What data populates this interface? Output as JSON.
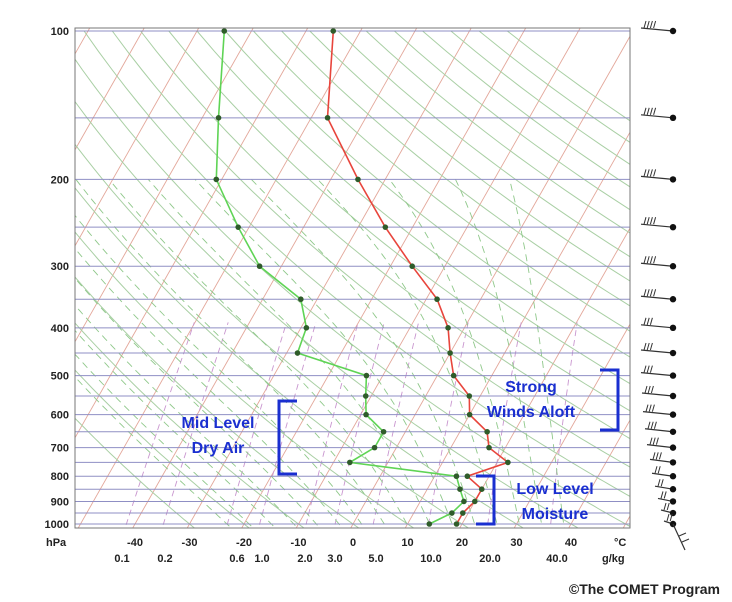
{
  "chart_data": {
    "type": "skew-t log-p diagram",
    "pressure_unit": "hPa",
    "temperature_unit": "°C",
    "mixing_ratio_unit": "g/kg",
    "pressure_levels": [
      100,
      200,
      300,
      400,
      500,
      600,
      700,
      800,
      900,
      1000
    ],
    "pressure_tick_labels": [
      "100",
      "200",
      "300",
      "400",
      "500",
      "600",
      "700",
      "800",
      "900",
      "1000"
    ],
    "temperature_ticks": [
      -40,
      -30,
      -20,
      -10,
      0,
      10,
      20,
      30,
      40
    ],
    "temperature_tick_labels": [
      "-40",
      "-30",
      "-20",
      "-10",
      "0",
      "10",
      "20",
      "30",
      "40"
    ],
    "mixing_ratio_ticks": [
      "0.1",
      "0.2",
      "0.6",
      "1.0",
      "2.0",
      "3.0",
      "5.0",
      "10.0",
      "20.0",
      "40.0"
    ],
    "series": [
      {
        "role": "temperature",
        "color": "#e8453c",
        "points": [
          [
            1000,
            19
          ],
          [
            950,
            19
          ],
          [
            900,
            20
          ],
          [
            850,
            20
          ],
          [
            800,
            16
          ],
          [
            750,
            22
          ],
          [
            700,
            17
          ],
          [
            650,
            15
          ],
          [
            600,
            10
          ],
          [
            550,
            8
          ],
          [
            500,
            3
          ],
          [
            450,
            0
          ],
          [
            400,
            -3
          ],
          [
            350,
            -8
          ],
          [
            300,
            -16
          ],
          [
            250,
            -25
          ],
          [
            200,
            -35
          ],
          [
            150,
            -47
          ],
          [
            100,
            -55
          ]
        ]
      },
      {
        "role": "dew point",
        "color": "#5fd455",
        "points": [
          [
            1000,
            14
          ],
          [
            950,
            17
          ],
          [
            900,
            18
          ],
          [
            850,
            16
          ],
          [
            800,
            14
          ],
          [
            750,
            -7
          ],
          [
            700,
            -4
          ],
          [
            650,
            -4
          ],
          [
            600,
            -9
          ],
          [
            550,
            -11
          ],
          [
            500,
            -13
          ],
          [
            450,
            -28
          ],
          [
            400,
            -29
          ],
          [
            350,
            -33
          ],
          [
            300,
            -44
          ],
          [
            250,
            -52
          ],
          [
            200,
            -61
          ],
          [
            150,
            -67
          ],
          [
            100,
            -75
          ]
        ]
      }
    ],
    "annotations": [
      {
        "text": [
          "Mid Level",
          "Dry Air"
        ]
      },
      {
        "text": [
          "Strong",
          "Winds Aloft"
        ]
      },
      {
        "text": [
          "Low Level",
          "Moisture"
        ]
      }
    ],
    "wind_barb_levels": [
      100,
      150,
      200,
      250,
      300,
      350,
      400,
      450,
      500,
      550,
      600,
      650,
      700,
      750,
      800,
      850,
      900,
      950,
      1000
    ]
  },
  "credit": "©The COMET Program"
}
